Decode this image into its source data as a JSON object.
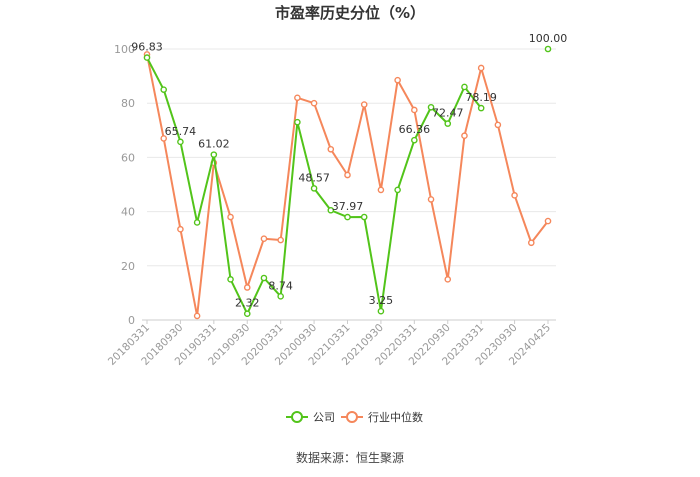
{
  "chart_data": {
    "type": "line",
    "title": "市盈率历史分位（%）",
    "source": "数据来源：恒生聚源",
    "ylim": [
      0,
      100
    ],
    "yticks": [
      0,
      20,
      40,
      60,
      80,
      100
    ],
    "grid": true,
    "legend_position": "bottom",
    "xtick_labels": [
      "20180331",
      "20180930",
      "20190331",
      "20190930",
      "20200331",
      "20200930",
      "20210331",
      "20210930",
      "20220331",
      "20220930",
      "20230331",
      "20230930",
      "20240425"
    ],
    "x": [
      "20180331",
      "20180630",
      "20180930",
      "20181231",
      "20190331",
      "20190630",
      "20190930",
      "20191231",
      "20200331",
      "20200630",
      "20200930",
      "20201231",
      "20210331",
      "20210630",
      "20210930",
      "20211231",
      "20220331",
      "20220630",
      "20220930",
      "20221231",
      "20230331",
      "20230630",
      "20230930",
      "20231231",
      "20240425"
    ],
    "series": [
      {
        "name": "公司",
        "color": "#52c41a",
        "values": [
          96.83,
          85,
          65.74,
          36,
          61.02,
          15,
          2.32,
          15.5,
          8.74,
          73,
          48.57,
          40.5,
          37.97,
          38,
          3.25,
          48,
          66.36,
          78.5,
          72.47,
          86,
          78.19,
          null,
          null,
          null,
          100.0
        ]
      },
      {
        "name": "行业中位数",
        "color": "#f5875b",
        "values": [
          98,
          67,
          33.5,
          1.5,
          58,
          38,
          12,
          30,
          29.5,
          82,
          80,
          63,
          53.5,
          79.5,
          48,
          88.5,
          77.5,
          44.5,
          15,
          68,
          93,
          72,
          46,
          28.5,
          36.5
        ]
      }
    ],
    "data_labels": [
      {
        "series": 0,
        "index": 0,
        "text": "96.83"
      },
      {
        "series": 0,
        "index": 2,
        "text": "65.74"
      },
      {
        "series": 0,
        "index": 4,
        "text": "61.02"
      },
      {
        "series": 0,
        "index": 6,
        "text": "2.32"
      },
      {
        "series": 0,
        "index": 8,
        "text": "8.74"
      },
      {
        "series": 0,
        "index": 10,
        "text": "48.57"
      },
      {
        "series": 0,
        "index": 12,
        "text": "37.97"
      },
      {
        "series": 0,
        "index": 14,
        "text": "3.25"
      },
      {
        "series": 0,
        "index": 16,
        "text": "66.36"
      },
      {
        "series": 0,
        "index": 18,
        "text": "72.47"
      },
      {
        "series": 0,
        "index": 20,
        "text": "78.19"
      },
      {
        "series": 0,
        "index": 24,
        "text": "100.00"
      }
    ]
  }
}
